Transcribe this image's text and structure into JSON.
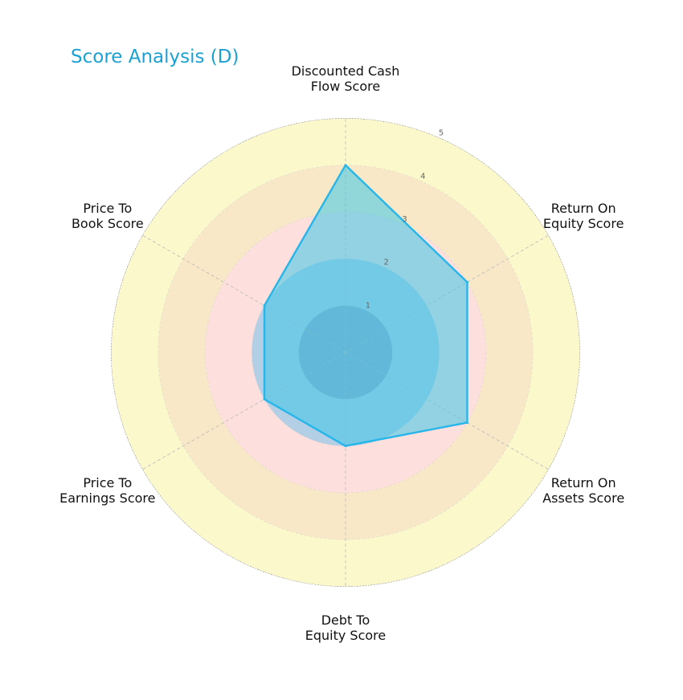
{
  "chart_data": {
    "type": "radar",
    "title": "Score Analysis (D)",
    "axes": [
      [
        "Discounted Cash",
        "Flow Score"
      ],
      [
        "Return On",
        "Equity Score"
      ],
      [
        "Return On",
        "Assets Score"
      ],
      [
        "Debt To",
        "Equity Score"
      ],
      [
        "Price To",
        "Earnings Score"
      ],
      [
        "Price To",
        "Book Score"
      ]
    ],
    "values": [
      4,
      3,
      3,
      2,
      2,
      2
    ],
    "rmax": 5,
    "ticks": [
      "1",
      "2",
      "3",
      "4",
      "5"
    ],
    "bands": [
      {
        "from": 0,
        "to": 1,
        "color": "#8fa6c9"
      },
      {
        "from": 1,
        "to": 2,
        "color": "#b3cfe6"
      },
      {
        "from": 2,
        "to": 3,
        "color": "#fde0de"
      },
      {
        "from": 3,
        "to": 4,
        "color": "#f8e8c8"
      },
      {
        "from": 4,
        "to": 5,
        "color": "#fbf8cc"
      },
      {
        "from": 5,
        "to": 5,
        "color": "#c9e0c8"
      }
    ],
    "colors": {
      "series_line": "#27b6ea",
      "series_fill": "#3cc6e6",
      "outer_ring": "#c9e0c8",
      "outer_border": "#444444",
      "title": "#1ba1d2"
    },
    "grid": true
  }
}
